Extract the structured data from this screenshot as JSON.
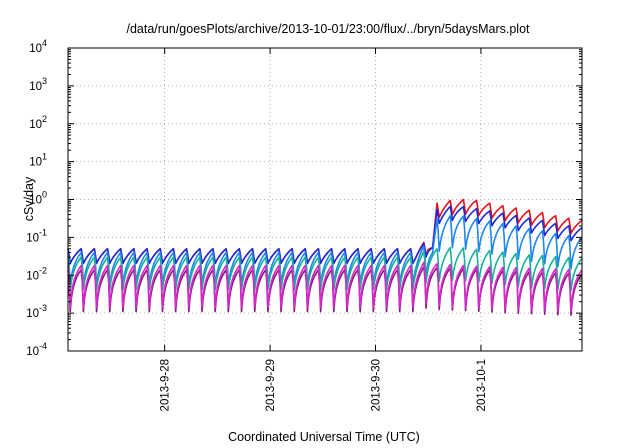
{
  "chart_data": {
    "type": "line",
    "title": "/data/run/goesPlots/archive/2013-10-01/23:00/flux/../bryn/5daysMars.plot",
    "xlabel": "Coordinated Universal Time (UTC)",
    "ylabel": "cSv/day",
    "yscale": "log",
    "ylim": [
      0.0001,
      10000
    ],
    "y_ticks": [
      {
        "base": "10",
        "exp": "-4"
      },
      {
        "base": "10",
        "exp": "-3"
      },
      {
        "base": "10",
        "exp": "-2"
      },
      {
        "base": "10",
        "exp": "-1"
      },
      {
        "base": "10",
        "exp": "0"
      },
      {
        "base": "10",
        "exp": "1"
      },
      {
        "base": "10",
        "exp": "2"
      },
      {
        "base": "10",
        "exp": "3"
      },
      {
        "base": "10",
        "exp": "4"
      }
    ],
    "xlim": [
      "2013-09-27T02:00",
      "2013-10-01T23:00"
    ],
    "x_ticks": [
      "2013-9-28",
      "2013-9-29",
      "2013-9-30",
      "2013-10-1"
    ],
    "grid": true,
    "sawtooth_period_hours": 3,
    "series": [
      {
        "color": "#e8101a",
        "values": [
          [
            0,
            0.05
          ],
          [
            79,
            0.05
          ],
          [
            82,
            0.09
          ],
          [
            83,
            0.07
          ],
          [
            84,
            0.8
          ],
          [
            88,
            1.0
          ],
          [
            92,
            1.0
          ],
          [
            96,
            0.8
          ],
          [
            100,
            0.65
          ],
          [
            104,
            0.55
          ],
          [
            108,
            0.45
          ],
          [
            112,
            0.35
          ],
          [
            117,
            0.28
          ]
        ]
      },
      {
        "color": "#1a2ad8",
        "values": [
          [
            0,
            0.05
          ],
          [
            79,
            0.05
          ],
          [
            82,
            0.08
          ],
          [
            83,
            0.07
          ],
          [
            84,
            0.55
          ],
          [
            88,
            0.7
          ],
          [
            92,
            0.6
          ],
          [
            96,
            0.5
          ],
          [
            100,
            0.42
          ],
          [
            104,
            0.34
          ],
          [
            108,
            0.28
          ],
          [
            112,
            0.22
          ],
          [
            117,
            0.18
          ]
        ]
      },
      {
        "color": "#1f86f0",
        "values": [
          [
            0,
            0.04
          ],
          [
            79,
            0.04
          ],
          [
            82,
            0.07
          ],
          [
            83,
            0.06
          ],
          [
            84,
            0.3
          ],
          [
            88,
            0.4
          ],
          [
            92,
            0.33
          ],
          [
            96,
            0.27
          ],
          [
            100,
            0.22
          ],
          [
            104,
            0.18
          ],
          [
            108,
            0.15
          ],
          [
            112,
            0.12
          ],
          [
            117,
            0.1
          ]
        ]
      },
      {
        "color": "#18b09a",
        "values": [
          [
            0,
            0.03
          ],
          [
            79,
            0.03
          ],
          [
            82,
            0.05
          ],
          [
            84,
            0.05
          ],
          [
            88,
            0.055
          ],
          [
            92,
            0.05
          ],
          [
            96,
            0.045
          ],
          [
            100,
            0.04
          ],
          [
            104,
            0.035
          ],
          [
            108,
            0.033
          ],
          [
            112,
            0.03
          ],
          [
            117,
            0.028
          ]
        ]
      },
      {
        "color": "#8a1a7a",
        "values": [
          [
            0,
            0.014
          ],
          [
            79,
            0.014
          ],
          [
            82,
            0.018
          ],
          [
            84,
            0.016
          ],
          [
            90,
            0.015
          ],
          [
            100,
            0.013
          ],
          [
            108,
            0.012
          ],
          [
            117,
            0.011
          ]
        ]
      },
      {
        "color": "#d828cc",
        "values": [
          [
            0,
            0.018
          ],
          [
            79,
            0.018
          ],
          [
            82,
            0.024
          ],
          [
            84,
            0.02
          ],
          [
            90,
            0.018
          ],
          [
            100,
            0.016
          ],
          [
            108,
            0.015
          ],
          [
            117,
            0.014
          ]
        ]
      }
    ]
  }
}
